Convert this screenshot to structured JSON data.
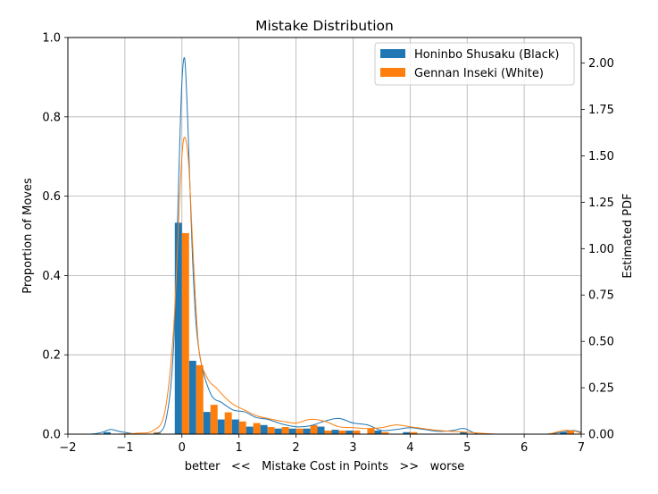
{
  "chart_data": {
    "type": "bar",
    "title": "Mistake Distribution",
    "xlabel": "better   <<   Mistake Cost in Points   >>   worse",
    "ylabel": "Proportion of Moves",
    "y2label": "Estimated PDF",
    "xlim": [
      -2,
      7
    ],
    "ylim": [
      0,
      1.0
    ],
    "y2lim": [
      0,
      2.138
    ],
    "xticks": [
      "−2",
      "−1",
      "0",
      "1",
      "2",
      "3",
      "4",
      "5",
      "6",
      "7"
    ],
    "xtick_values": [
      -2,
      -1,
      0,
      1,
      2,
      3,
      4,
      5,
      6,
      7
    ],
    "yticks": [
      "0.0",
      "0.2",
      "0.4",
      "0.6",
      "0.8",
      "1.0"
    ],
    "ytick_values": [
      0,
      0.2,
      0.4,
      0.6,
      0.8,
      1.0
    ],
    "y2ticks": [
      "0.00",
      "0.25",
      "0.50",
      "0.75",
      "1.00",
      "1.25",
      "1.50",
      "1.75",
      "2.00"
    ],
    "y2tick_values": [
      0,
      0.25,
      0.5,
      0.75,
      1.0,
      1.25,
      1.5,
      1.75,
      2.0
    ],
    "grid": true,
    "legend_position": "top-right",
    "bin_width": 0.25,
    "bin_centers": [
      -1.25,
      -0.5,
      0.0,
      0.25,
      0.5,
      0.75,
      1.0,
      1.25,
      1.5,
      1.75,
      2.0,
      2.25,
      2.5,
      2.75,
      3.0,
      3.25,
      3.5,
      4.0,
      5.0,
      6.75
    ],
    "series": [
      {
        "name": "Honinbo Shusaku (Black)",
        "color": "#1f77b4",
        "values": [
          0.005,
          0.0,
          0.533,
          0.185,
          0.056,
          0.037,
          0.037,
          0.019,
          0.023,
          0.014,
          0.014,
          0.014,
          0.019,
          0.011,
          0.009,
          0.0,
          0.009,
          0.005,
          0.005,
          0.005
        ],
        "pdf_x": [
          -2,
          -1.6,
          -1.4,
          -1.25,
          -1.1,
          -0.8,
          -0.5,
          -0.3,
          -0.15,
          -0.05,
          0.0,
          0.05,
          0.1,
          0.2,
          0.3,
          0.5,
          0.7,
          0.9,
          1.1,
          1.3,
          1.5,
          1.75,
          2.0,
          2.25,
          2.5,
          2.75,
          3.0,
          3.25,
          3.5,
          3.75,
          4.0,
          4.25,
          4.5,
          4.75,
          4.95,
          5.2,
          5.6,
          6.0,
          6.4,
          6.65,
          6.85,
          7.0
        ],
        "pdf_y": [
          0.0,
          0.0,
          0.01,
          0.025,
          0.015,
          0.0,
          0.0,
          0.05,
          0.45,
          1.45,
          1.9,
          2.02,
          1.7,
          0.85,
          0.45,
          0.22,
          0.17,
          0.13,
          0.12,
          0.09,
          0.08,
          0.055,
          0.04,
          0.045,
          0.07,
          0.085,
          0.06,
          0.05,
          0.02,
          0.025,
          0.035,
          0.025,
          0.015,
          0.02,
          0.03,
          0.0,
          0.0,
          0.0,
          0.0,
          0.01,
          0.02,
          0.01
        ]
      },
      {
        "name": "Gennan Inseki (White)",
        "color": "#ff7f0e",
        "values": [
          0.0,
          0.005,
          0.507,
          0.174,
          0.074,
          0.055,
          0.032,
          0.028,
          0.018,
          0.018,
          0.014,
          0.023,
          0.009,
          0.009,
          0.009,
          0.014,
          0.005,
          0.005,
          0.0,
          0.009
        ],
        "pdf_x": [
          -2,
          -1.2,
          -0.8,
          -0.5,
          -0.3,
          -0.15,
          -0.05,
          0.0,
          0.05,
          0.12,
          0.2,
          0.3,
          0.45,
          0.6,
          0.75,
          0.9,
          1.1,
          1.3,
          1.5,
          1.75,
          2.0,
          2.25,
          2.5,
          2.75,
          3.0,
          3.25,
          3.5,
          3.75,
          4.0,
          4.5,
          5.0,
          5.5,
          6.0,
          6.4,
          6.7,
          6.9,
          7.0
        ],
        "pdf_y": [
          0.0,
          0.0,
          0.005,
          0.02,
          0.12,
          0.55,
          1.2,
          1.5,
          1.6,
          1.45,
          0.95,
          0.45,
          0.3,
          0.25,
          0.2,
          0.16,
          0.13,
          0.1,
          0.085,
          0.07,
          0.06,
          0.08,
          0.07,
          0.04,
          0.035,
          0.03,
          0.035,
          0.05,
          0.04,
          0.02,
          0.01,
          0.0,
          0.0,
          0.0,
          0.02,
          0.015,
          0.005
        ]
      }
    ]
  }
}
